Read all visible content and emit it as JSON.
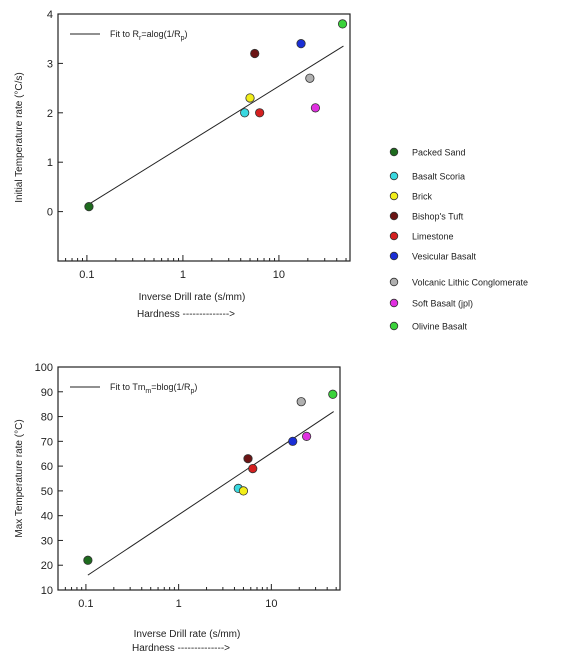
{
  "legend": {
    "items": [
      {
        "label": "Packed Sand",
        "color": "#1e6b1e"
      },
      {
        "label": "Basalt Scoria",
        "color": "#39d8e0"
      },
      {
        "label": "Brick",
        "color": "#f2ee1a"
      },
      {
        "label": "Bishop's Tuft",
        "color": "#6b1414"
      },
      {
        "label": "Limestone",
        "color": "#d42020"
      },
      {
        "label": "Vesicular Basalt",
        "color": "#1a2ed6"
      },
      {
        "label": "Volcanic Lithic Conglomerate",
        "color": "#b0b0b0"
      },
      {
        "label": "Soft Basalt (jpl)",
        "color": "#e030e0"
      },
      {
        "label": "Olivine Basalt",
        "color": "#3ad23a"
      }
    ]
  },
  "chart_data": [
    {
      "type": "scatter",
      "xlabel": "Inverse Drill rate (s/mm)",
      "xlabel2": "Hardness -------------->",
      "ylabel": "Initial Temperature rate (°C/s)",
      "xscale": "log",
      "xlim": [
        0.05,
        55
      ],
      "ylim": [
        -1,
        4
      ],
      "xticks": [
        {
          "v": 0.1,
          "label": "0.1"
        },
        {
          "v": 1,
          "label": "1"
        },
        {
          "v": 10,
          "label": "10"
        }
      ],
      "yticks": [
        {
          "v": 0,
          "label": "0"
        },
        {
          "v": 1,
          "label": "1"
        },
        {
          "v": 2,
          "label": "2"
        },
        {
          "v": 3,
          "label": "3"
        },
        {
          "v": 4,
          "label": "4"
        }
      ],
      "legend_text": {
        "pre": "Fit to R",
        "sub1": "r",
        "mid": "=alog(1/R",
        "sub2": "p",
        "post": ")"
      },
      "fit": {
        "x": [
          0.105,
          47
        ],
        "y": [
          0.15,
          3.35
        ]
      },
      "points": [
        {
          "name": "Packed Sand",
          "x": 0.105,
          "y": 0.1
        },
        {
          "name": "Basalt Scoria",
          "x": 4.4,
          "y": 2.0
        },
        {
          "name": "Brick",
          "x": 5.0,
          "y": 2.3
        },
        {
          "name": "Bishop's Tuft",
          "x": 5.6,
          "y": 3.2
        },
        {
          "name": "Limestone",
          "x": 6.3,
          "y": 2.0
        },
        {
          "name": "Vesicular Basalt",
          "x": 17,
          "y": 3.4
        },
        {
          "name": "Volcanic Lithic Conglomerate",
          "x": 21,
          "y": 2.7
        },
        {
          "name": "Soft Basalt (jpl)",
          "x": 24,
          "y": 2.1
        },
        {
          "name": "Olivine Basalt",
          "x": 46,
          "y": 3.8
        }
      ]
    },
    {
      "type": "scatter",
      "xlabel": "Inverse Drill rate (s/mm)",
      "xlabel2": "Hardness -------------->",
      "ylabel": "Max Temperature rate (°C)",
      "xscale": "log",
      "xlim": [
        0.05,
        55
      ],
      "ylim": [
        10,
        100
      ],
      "xticks": [
        {
          "v": 0.1,
          "label": "0.1"
        },
        {
          "v": 1,
          "label": "1"
        },
        {
          "v": 10,
          "label": "10"
        }
      ],
      "yticks": [
        {
          "v": 10,
          "label": "10"
        },
        {
          "v": 20,
          "label": "20"
        },
        {
          "v": 30,
          "label": "30"
        },
        {
          "v": 40,
          "label": "40"
        },
        {
          "v": 50,
          "label": "50"
        },
        {
          "v": 60,
          "label": "60"
        },
        {
          "v": 70,
          "label": "70"
        },
        {
          "v": 80,
          "label": "80"
        },
        {
          "v": 90,
          "label": "90"
        },
        {
          "v": 100,
          "label": "100"
        }
      ],
      "legend_text": {
        "pre": "Fit to Tm",
        "sub1": "m",
        "mid": "=blog(1/R",
        "sub2": "p",
        "post": ")"
      },
      "fit": {
        "x": [
          0.105,
          47
        ],
        "y": [
          16,
          82
        ]
      },
      "points": [
        {
          "name": "Packed Sand",
          "x": 0.105,
          "y": 22
        },
        {
          "name": "Basalt Scoria",
          "x": 4.4,
          "y": 51
        },
        {
          "name": "Brick",
          "x": 5.0,
          "y": 50
        },
        {
          "name": "Bishop's Tuft",
          "x": 5.6,
          "y": 63
        },
        {
          "name": "Limestone",
          "x": 6.3,
          "y": 59
        },
        {
          "name": "Vesicular Basalt",
          "x": 17,
          "y": 70
        },
        {
          "name": "Volcanic Lithic Conglomerate",
          "x": 21,
          "y": 86
        },
        {
          "name": "Soft Basalt (jpl)",
          "x": 24,
          "y": 72
        },
        {
          "name": "Olivine Basalt",
          "x": 46,
          "y": 89
        }
      ]
    }
  ]
}
